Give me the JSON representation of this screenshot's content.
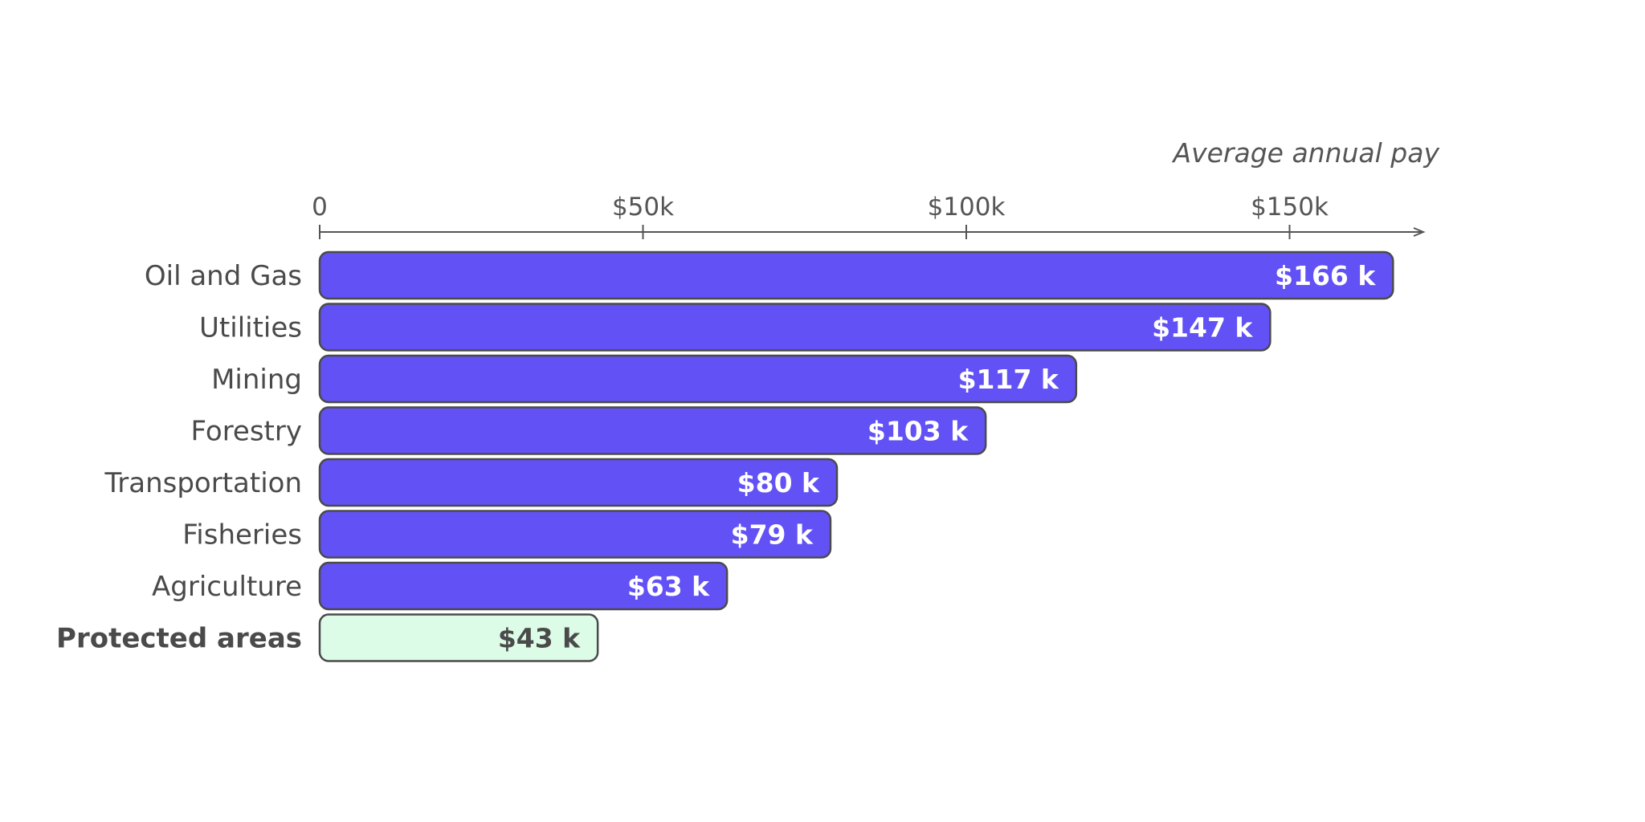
{
  "chart_data": {
    "type": "bar",
    "orientation": "horizontal",
    "title": "",
    "xlabel": "Average annual pay",
    "ylabel": "",
    "xlim": [
      0,
      170
    ],
    "x_ticks": [
      0,
      50,
      100,
      150
    ],
    "x_tick_labels": [
      "0",
      "$50k",
      "$100k",
      "$150k"
    ],
    "grid": false,
    "categories": [
      "Oil and Gas",
      "Utilities",
      "Mining",
      "Forestry",
      "Transportation",
      "Fisheries",
      "Agriculture",
      "Protected areas"
    ],
    "values": [
      166,
      147,
      117,
      103,
      80,
      79,
      63,
      43
    ],
    "value_labels": [
      "$166 k",
      "$147 k",
      "$117 k",
      "$103 k",
      "$80 k",
      "$79 k",
      "$63 k",
      "$43 k"
    ],
    "highlight": "Protected areas",
    "colors": {
      "bar": "#6251f5",
      "highlight_bar": "#dcfce8",
      "bar_stroke": "#4a4a4a",
      "label_on_bar": "#ffffff",
      "label_on_highlight": "#4a4a4a",
      "axis": "#555555"
    }
  }
}
